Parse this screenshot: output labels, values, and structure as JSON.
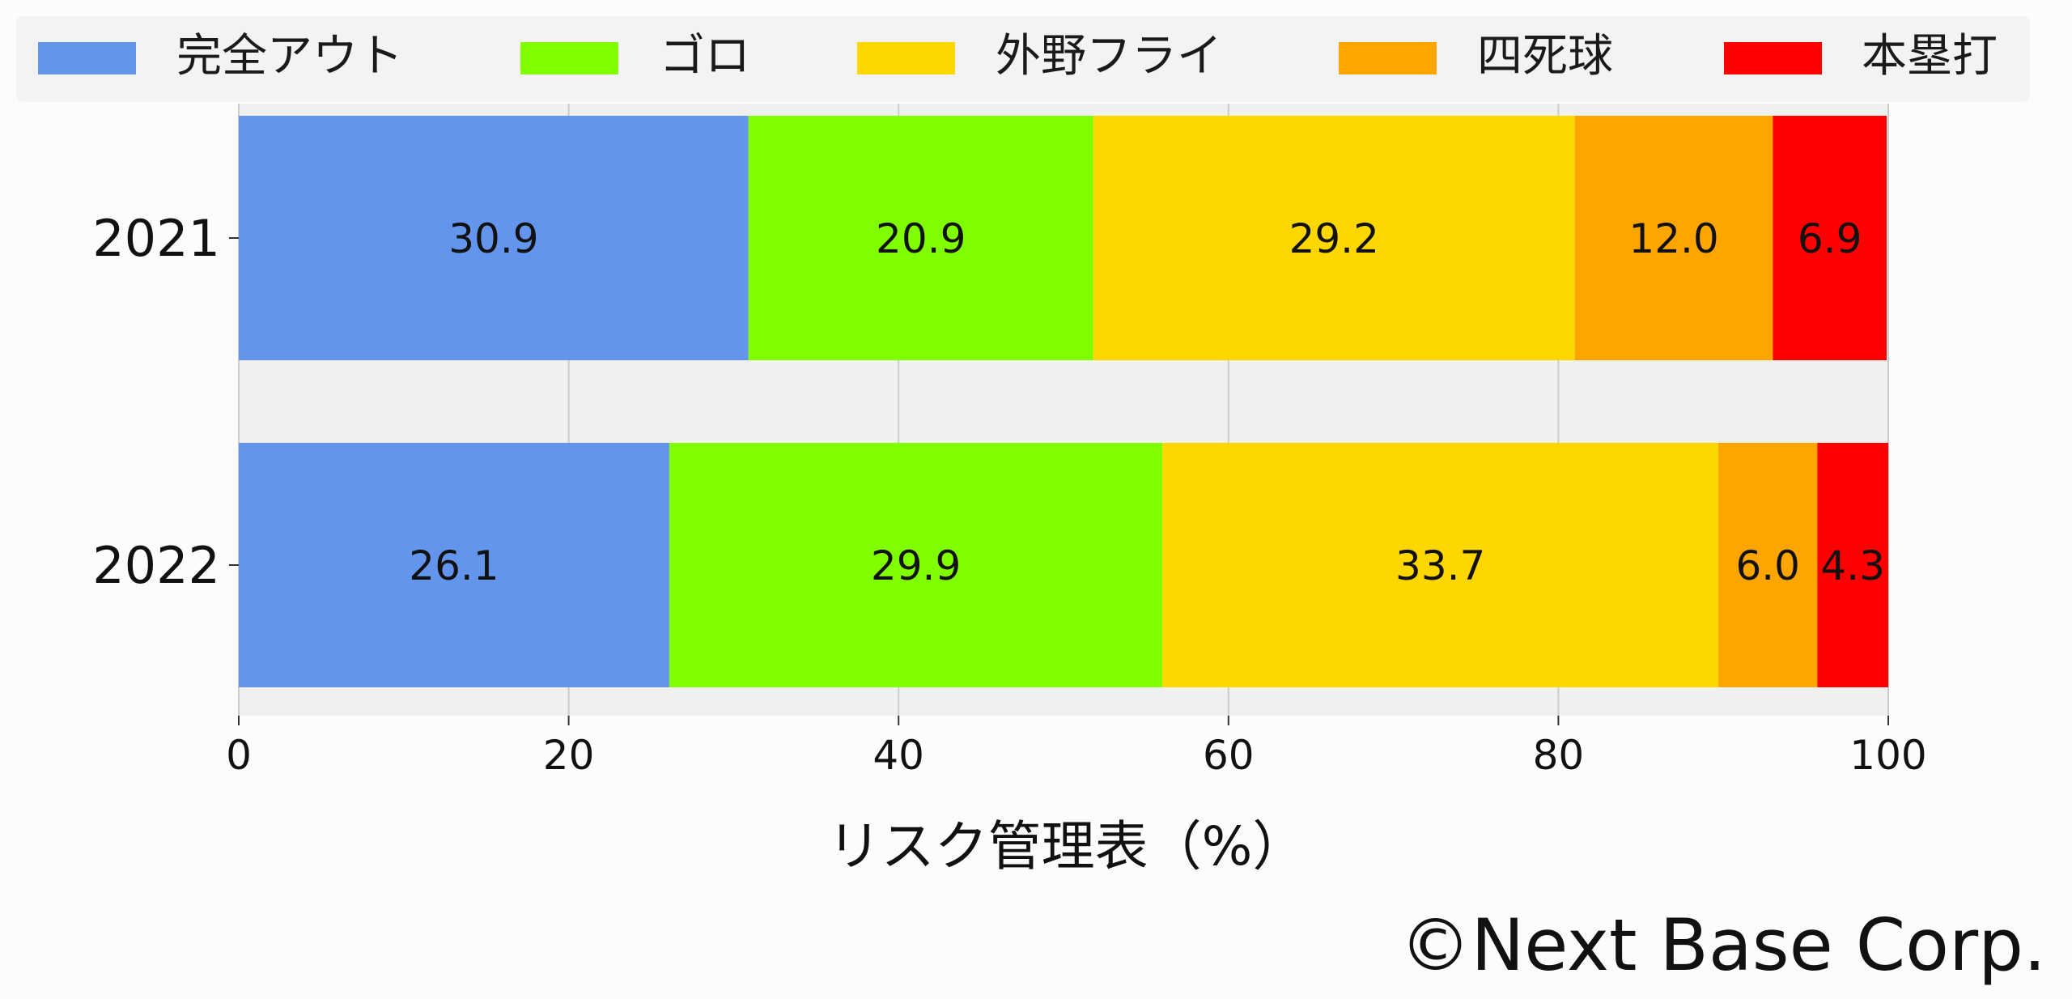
{
  "chart_data": {
    "type": "bar",
    "orientation": "horizontal",
    "stacked": true,
    "categories": [
      "2021",
      "2022"
    ],
    "series": [
      {
        "name": "完全アウト",
        "color": "#6495ed",
        "values": [
          30.9,
          26.1
        ]
      },
      {
        "name": "ゴロ",
        "color": "#7fff00",
        "values": [
          20.9,
          29.9
        ]
      },
      {
        "name": "外野フライ",
        "color": "#ffd700",
        "values": [
          29.2,
          33.7
        ]
      },
      {
        "name": "四死球",
        "color": "#ffa500",
        "values": [
          12.0,
          6.0
        ]
      },
      {
        "name": "本塁打",
        "color": "#ff0000",
        "values": [
          6.9,
          4.3
        ]
      }
    ],
    "value_labels": [
      [
        "30.9",
        "20.9",
        "29.2",
        "12.0",
        "6.9"
      ],
      [
        "26.1",
        "29.9",
        "33.7",
        "6.0",
        "4.3"
      ]
    ],
    "xlabel": "リスク管理表（%）",
    "ylabel": "",
    "xlim": [
      0,
      100
    ],
    "xticks": [
      "0",
      "20",
      "40",
      "60",
      "80",
      "100"
    ],
    "grid": "vertical",
    "legend_position": "top"
  },
  "credit": "©Next Base Corp."
}
